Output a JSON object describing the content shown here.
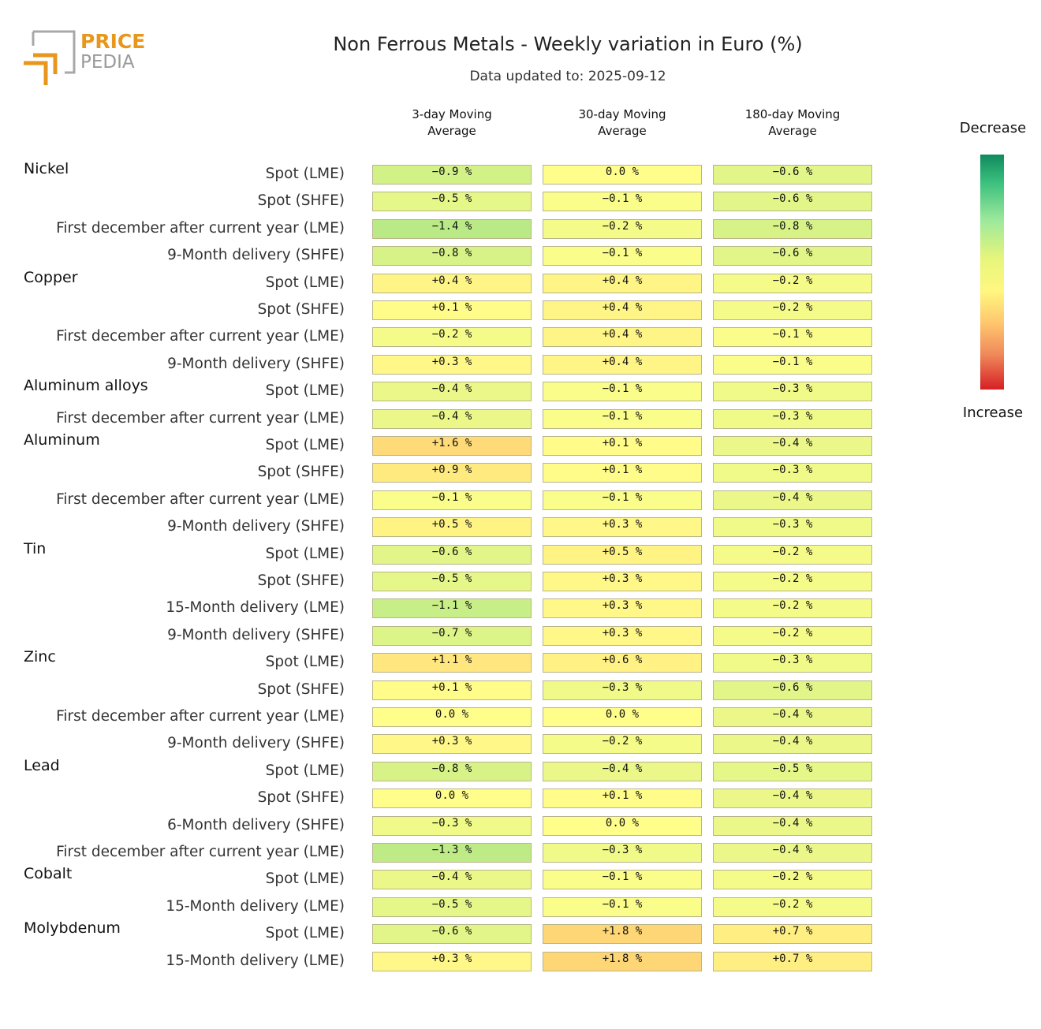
{
  "header": {
    "logo_text_top": "PRICE",
    "logo_text_bottom": "PEDIA",
    "title": "Non Ferrous Metals - Weekly variation in Euro (%)",
    "subtitle": "Data updated to: 2025-09-12"
  },
  "legend": {
    "top_label": "Decrease",
    "bottom_label": "Increase",
    "colors": [
      "#0f8a5d",
      "#3cc07f",
      "#9de99b",
      "#e6f57c",
      "#fff780",
      "#ffc56e",
      "#ef8a5a",
      "#d61f26"
    ]
  },
  "chart_data": {
    "type": "heatmap",
    "title": "Non Ferrous Metals - Weekly variation in Euro (%)",
    "subtitle": "Data updated to: 2025-09-12",
    "unit": "%",
    "columns": [
      {
        "line1": "3-day Moving",
        "line2": "Average"
      },
      {
        "line1": "30-day Moving",
        "line2": "Average"
      },
      {
        "line1": "180-day Moving",
        "line2": "Average"
      }
    ],
    "rows": [
      {
        "group": "Nickel",
        "label": "Spot (LME)",
        "values": [
          -0.9,
          0.0,
          -0.6
        ]
      },
      {
        "group": "",
        "label": "Spot (SHFE)",
        "values": [
          -0.5,
          -0.1,
          -0.6
        ]
      },
      {
        "group": "",
        "label": "First december after current year (LME)",
        "values": [
          -1.4,
          -0.2,
          -0.8
        ]
      },
      {
        "group": "",
        "label": "9-Month delivery (SHFE)",
        "values": [
          -0.8,
          -0.1,
          -0.6
        ]
      },
      {
        "group": "Copper",
        "label": "Spot (LME)",
        "values": [
          0.4,
          0.4,
          -0.2
        ]
      },
      {
        "group": "",
        "label": "Spot (SHFE)",
        "values": [
          0.1,
          0.4,
          -0.2
        ]
      },
      {
        "group": "",
        "label": "First december after current year (LME)",
        "values": [
          -0.2,
          0.4,
          -0.1
        ]
      },
      {
        "group": "",
        "label": "9-Month delivery (SHFE)",
        "values": [
          0.3,
          0.4,
          -0.1
        ]
      },
      {
        "group": "Aluminum alloys",
        "label": "Spot (LME)",
        "values": [
          -0.4,
          -0.1,
          -0.3
        ]
      },
      {
        "group": "",
        "label": "First december after current year (LME)",
        "values": [
          -0.4,
          -0.1,
          -0.3
        ]
      },
      {
        "group": "Aluminum",
        "label": "Spot (LME)",
        "values": [
          1.6,
          0.1,
          -0.4
        ]
      },
      {
        "group": "",
        "label": "Spot (SHFE)",
        "values": [
          0.9,
          0.1,
          -0.3
        ]
      },
      {
        "group": "",
        "label": "First december after current year (LME)",
        "values": [
          -0.1,
          -0.1,
          -0.4
        ]
      },
      {
        "group": "",
        "label": "9-Month delivery (SHFE)",
        "values": [
          0.5,
          0.3,
          -0.3
        ]
      },
      {
        "group": "Tin",
        "label": "Spot (LME)",
        "values": [
          -0.6,
          0.5,
          -0.2
        ]
      },
      {
        "group": "",
        "label": "Spot (SHFE)",
        "values": [
          -0.5,
          0.3,
          -0.2
        ]
      },
      {
        "group": "",
        "label": "15-Month delivery (LME)",
        "values": [
          -1.1,
          0.3,
          -0.2
        ]
      },
      {
        "group": "",
        "label": "9-Month delivery (SHFE)",
        "values": [
          -0.7,
          0.3,
          -0.2
        ]
      },
      {
        "group": "Zinc",
        "label": "Spot (LME)",
        "values": [
          1.1,
          0.6,
          -0.3
        ]
      },
      {
        "group": "",
        "label": "Spot (SHFE)",
        "values": [
          0.1,
          -0.3,
          -0.6
        ]
      },
      {
        "group": "",
        "label": "First december after current year (LME)",
        "values": [
          0.0,
          0.0,
          -0.4
        ]
      },
      {
        "group": "",
        "label": "9-Month delivery (SHFE)",
        "values": [
          0.3,
          -0.2,
          -0.4
        ]
      },
      {
        "group": "Lead",
        "label": "Spot (LME)",
        "values": [
          -0.8,
          -0.4,
          -0.5
        ]
      },
      {
        "group": "",
        "label": "Spot (SHFE)",
        "values": [
          0.0,
          0.1,
          -0.4
        ]
      },
      {
        "group": "",
        "label": "6-Month delivery (SHFE)",
        "values": [
          -0.3,
          0.0,
          -0.4
        ]
      },
      {
        "group": "",
        "label": "First december after current year (LME)",
        "values": [
          -1.3,
          -0.3,
          -0.4
        ]
      },
      {
        "group": "Cobalt",
        "label": "Spot (LME)",
        "values": [
          -0.4,
          -0.1,
          -0.2
        ]
      },
      {
        "group": "",
        "label": "15-Month delivery (LME)",
        "values": [
          -0.5,
          -0.1,
          -0.2
        ]
      },
      {
        "group": "Molybdenum",
        "label": "Spot (LME)",
        "values": [
          -0.6,
          1.8,
          0.7
        ]
      },
      {
        "group": "",
        "label": "15-Month delivery (LME)",
        "values": [
          0.3,
          1.8,
          0.7
        ]
      }
    ]
  }
}
